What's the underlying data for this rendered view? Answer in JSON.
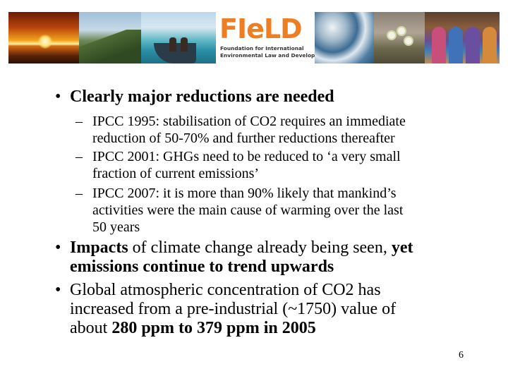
{
  "banner": {
    "logo_word": "FIeLD",
    "logo_sub1": "Foundation for International",
    "logo_sub2": "Environmental Law and Development"
  },
  "slide": {
    "bullet1": "Clearly major reductions are needed",
    "sub_items": [
      {
        "line1": "IPCC 1995:   stabilisation of CO2 requires an immediate",
        "line2": "reduction of 50-70% and further reductions thereafter"
      },
      {
        "line1": "IPCC 2001:   GHGs need to be reduced to ‘a very small",
        "line2": "fraction of current emissions’"
      },
      {
        "line1": "IPCC 2007:   it is more than 90% likely that mankind’s",
        "line2": "activities were the main cause of warming over the last",
        "line3": "50 years"
      }
    ],
    "bullet2": {
      "bold_a": "Impacts",
      "normal_a": " of climate change already being seen, ",
      "bold_b": "yet",
      "bold_c": "emissions continue to trend upwards"
    },
    "bullet3": {
      "line1": "Global atmospheric concentration of CO2 has",
      "line2": "increased from a pre-industrial (~1750) value of",
      "line3_normal": "about ",
      "line3_bold": "280 ppm to 379 ppm in 2005"
    },
    "page_number": "6"
  }
}
